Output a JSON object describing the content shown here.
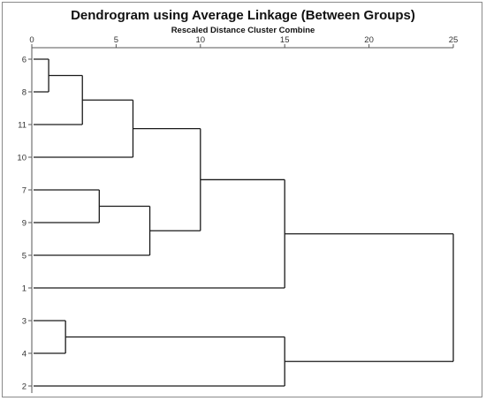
{
  "chart_data": {
    "type": "dendrogram",
    "title": "Dendrogram using Average Linkage (Between Groups)",
    "xlabel": "Rescaled Distance Cluster Combine",
    "xlim": [
      0,
      25
    ],
    "xticks": [
      0,
      5,
      10,
      15,
      20,
      25
    ],
    "leaf_order": [
      "6",
      "8",
      "11",
      "10",
      "7",
      "9",
      "5",
      "1",
      "3",
      "4",
      "2"
    ],
    "merges": [
      {
        "cluster": "C1",
        "children": [
          "6",
          "8"
        ],
        "distance": 1
      },
      {
        "cluster": "C2",
        "children": [
          "C1",
          "11"
        ],
        "distance": 3
      },
      {
        "cluster": "C3",
        "children": [
          "C2",
          "10"
        ],
        "distance": 6
      },
      {
        "cluster": "C4",
        "children": [
          "7",
          "9"
        ],
        "distance": 4
      },
      {
        "cluster": "C5",
        "children": [
          "C4",
          "5"
        ],
        "distance": 7
      },
      {
        "cluster": "C6",
        "children": [
          "C3",
          "C5"
        ],
        "distance": 10
      },
      {
        "cluster": "C7",
        "children": [
          "C6",
          "1"
        ],
        "distance": 15
      },
      {
        "cluster": "C8",
        "children": [
          "3",
          "4"
        ],
        "distance": 2
      },
      {
        "cluster": "C9",
        "children": [
          "C8",
          "2"
        ],
        "distance": 15
      },
      {
        "cluster": "C10",
        "children": [
          "C7",
          "C9"
        ],
        "distance": 25
      }
    ],
    "line_color": "#1a1a1a",
    "grid": false
  }
}
